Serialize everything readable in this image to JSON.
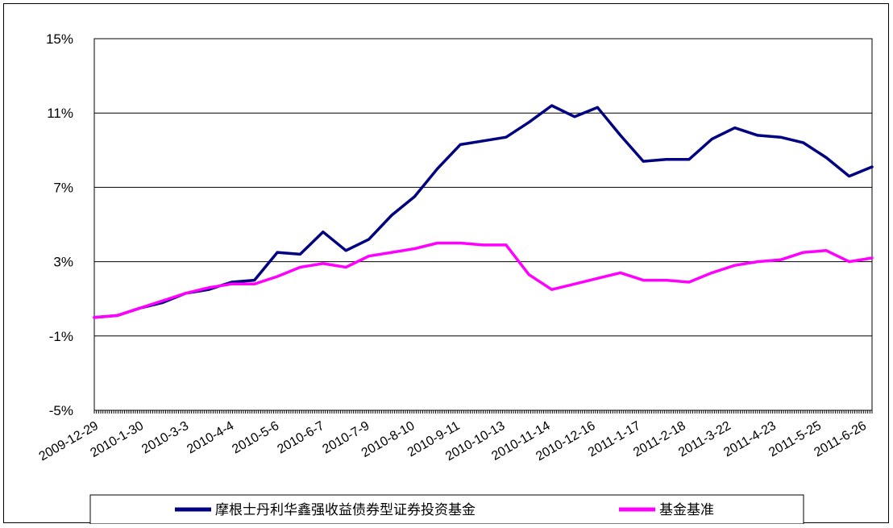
{
  "chart_data": {
    "type": "line",
    "title": "",
    "xlabel": "",
    "ylabel": "",
    "ylim": [
      -5,
      15
    ],
    "y_ticks": [
      "15%",
      "11%",
      "7%",
      "3%",
      "-1%",
      "-5%"
    ],
    "y_tick_values": [
      15,
      11,
      7,
      3,
      -1,
      -5
    ],
    "x_tick_labels": [
      "2009-12-29",
      "2010-1-30",
      "2010-3-3",
      "2010-4-4",
      "2010-5-6",
      "2010-6-7",
      "2010-7-9",
      "2010-8-10",
      "2010-9-11",
      "2010-10-13",
      "2010-11-14",
      "2010-12-16",
      "2011-1-17",
      "2011-2-18",
      "2011-3-22",
      "2011-4-23",
      "2011-5-25",
      "2011-6-26"
    ],
    "x": [
      "2009-12-29",
      "2010-1-14",
      "2010-1-30",
      "2010-2-15",
      "2010-3-3",
      "2010-3-19",
      "2010-4-4",
      "2010-4-20",
      "2010-5-6",
      "2010-5-22",
      "2010-6-7",
      "2010-6-23",
      "2010-7-9",
      "2010-7-25",
      "2010-8-10",
      "2010-8-26",
      "2010-9-11",
      "2010-9-27",
      "2010-10-13",
      "2010-10-29",
      "2010-11-14",
      "2010-11-30",
      "2010-12-16",
      "2011-1-1",
      "2011-1-17",
      "2011-2-2",
      "2011-2-18",
      "2011-3-6",
      "2011-3-22",
      "2011-4-7",
      "2011-4-23",
      "2011-5-9",
      "2011-5-25",
      "2011-6-10",
      "2011-6-26"
    ],
    "grid": true,
    "legend_position": "bottom",
    "series": [
      {
        "name": "摩根士丹利华鑫强收益债券型证券投资基金",
        "color": "#000080",
        "values": [
          0.0,
          0.1,
          0.5,
          0.8,
          1.3,
          1.5,
          1.9,
          2.0,
          3.5,
          3.4,
          4.6,
          3.6,
          4.2,
          5.5,
          6.5,
          8.0,
          9.3,
          9.5,
          9.7,
          10.5,
          11.4,
          10.8,
          11.3,
          9.8,
          8.4,
          8.5,
          8.5,
          9.6,
          10.2,
          9.8,
          9.7,
          9.4,
          8.6,
          7.6,
          8.1
        ]
      },
      {
        "name": "基金基准",
        "color": "#FF00FF",
        "values": [
          0.0,
          0.1,
          0.5,
          0.9,
          1.3,
          1.6,
          1.8,
          1.8,
          2.2,
          2.7,
          2.9,
          2.7,
          3.3,
          3.5,
          3.7,
          4.0,
          4.0,
          3.9,
          3.9,
          2.3,
          1.5,
          1.8,
          2.1,
          2.4,
          2.0,
          2.0,
          1.9,
          2.4,
          2.8,
          3.0,
          3.1,
          3.5,
          3.6,
          3.0,
          3.2
        ]
      }
    ]
  }
}
